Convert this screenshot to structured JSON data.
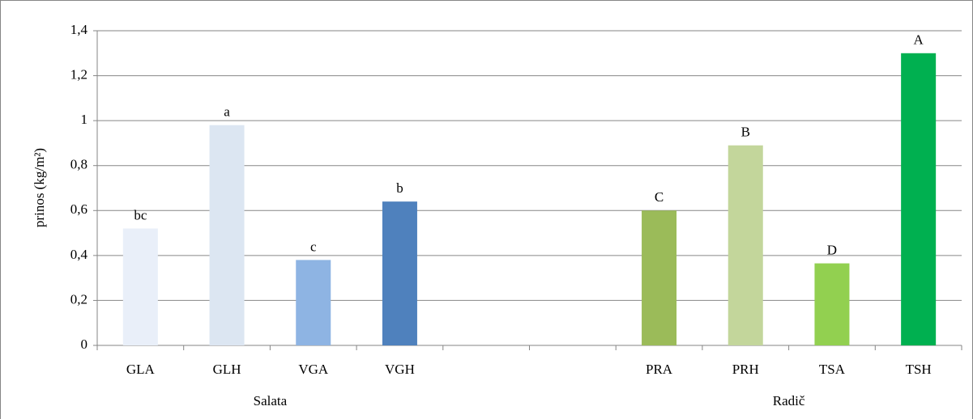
{
  "chart_data": {
    "type": "bar",
    "ylabel": "prinos (kg/m²)",
    "categories": [
      "GLA",
      "GLH",
      "VGA",
      "VGH",
      null,
      null,
      "PRA",
      "PRH",
      "TSA",
      "TSH"
    ],
    "values": [
      0.52,
      0.98,
      0.38,
      0.64,
      null,
      null,
      0.6,
      0.89,
      0.365,
      1.3
    ],
    "colors": [
      "#e9eff9",
      "#dce6f2",
      "#8eb4e3",
      "#4f81bd",
      null,
      null,
      "#9bbb59",
      "#c3d69b",
      "#92d050",
      "#00b050"
    ],
    "annotations": [
      "bc",
      "a",
      "c",
      "b",
      null,
      null,
      "C",
      "B",
      "D",
      "A"
    ],
    "group_labels": [
      "Salata",
      "Radič"
    ],
    "ylim": [
      0,
      1.4
    ],
    "yticks": [
      0,
      {
        "value": 0.2,
        "label": "0,2"
      },
      {
        "value": 0.4,
        "label": "0,4"
      },
      {
        "value": 0.6,
        "label": "0,6"
      },
      {
        "value": 0.8,
        "label": "0,8"
      },
      1,
      {
        "value": 1.2,
        "label": "1,2"
      },
      {
        "value": 1.4,
        "label": "1,4"
      }
    ],
    "grid": true
  }
}
